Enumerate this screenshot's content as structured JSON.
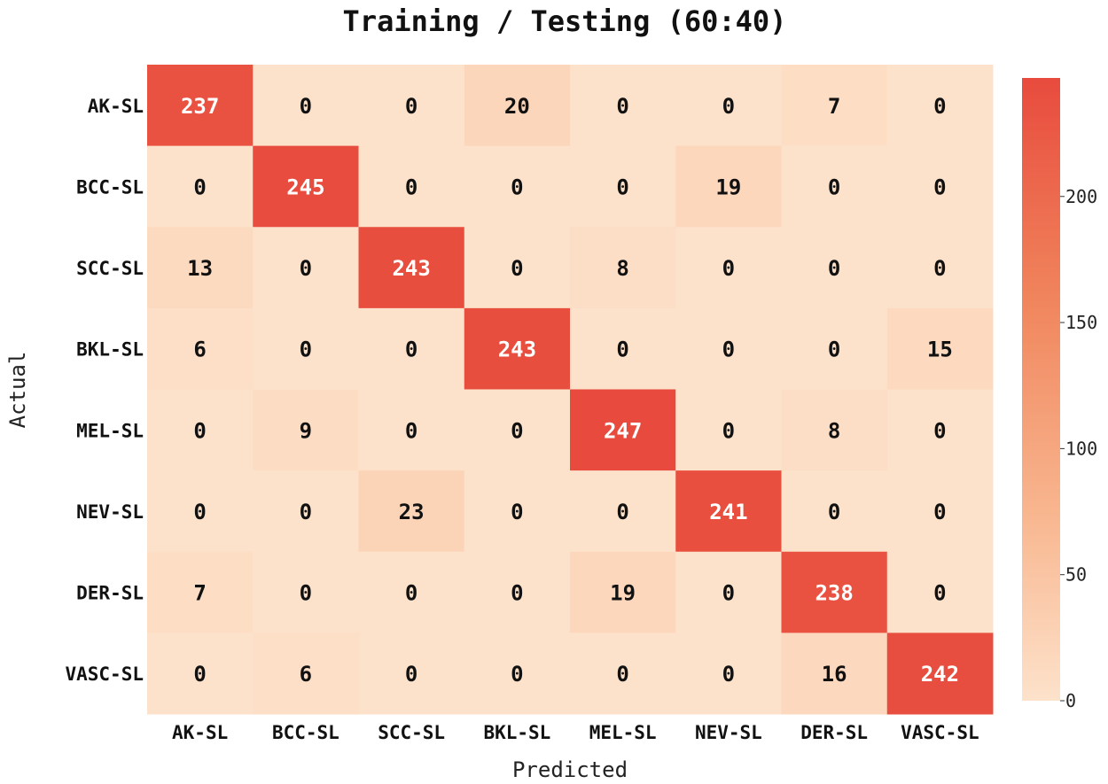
{
  "chart_data": {
    "type": "heatmap",
    "title": "Training / Testing (60:40)",
    "xlabel": "Predicted",
    "ylabel": "Actual",
    "x_categories": [
      "AK-SL",
      "BCC-SL",
      "SCC-SL",
      "BKL-SL",
      "MEL-SL",
      "NEV-SL",
      "DER-SL",
      "VASC-SL"
    ],
    "y_categories": [
      "AK-SL",
      "BCC-SL",
      "SCC-SL",
      "BKL-SL",
      "MEL-SL",
      "NEV-SL",
      "DER-SL",
      "VASC-SL"
    ],
    "matrix": [
      [
        237,
        0,
        0,
        20,
        0,
        0,
        7,
        0
      ],
      [
        0,
        245,
        0,
        0,
        0,
        19,
        0,
        0
      ],
      [
        13,
        0,
        243,
        0,
        8,
        0,
        0,
        0
      ],
      [
        6,
        0,
        0,
        243,
        0,
        0,
        0,
        15
      ],
      [
        0,
        9,
        0,
        0,
        247,
        0,
        8,
        0
      ],
      [
        0,
        0,
        23,
        0,
        0,
        241,
        0,
        0
      ],
      [
        7,
        0,
        0,
        0,
        19,
        0,
        238,
        0
      ],
      [
        0,
        6,
        0,
        0,
        0,
        0,
        16,
        242
      ]
    ],
    "colorbar": {
      "vmin": 0,
      "vmax": 247,
      "ticks": [
        0,
        50,
        100,
        150,
        200
      ],
      "color_low": "#fde2cb",
      "color_high": "#e84b3d"
    },
    "annotation_color_dark": "#111111",
    "annotation_color_light": "#ffffff"
  }
}
